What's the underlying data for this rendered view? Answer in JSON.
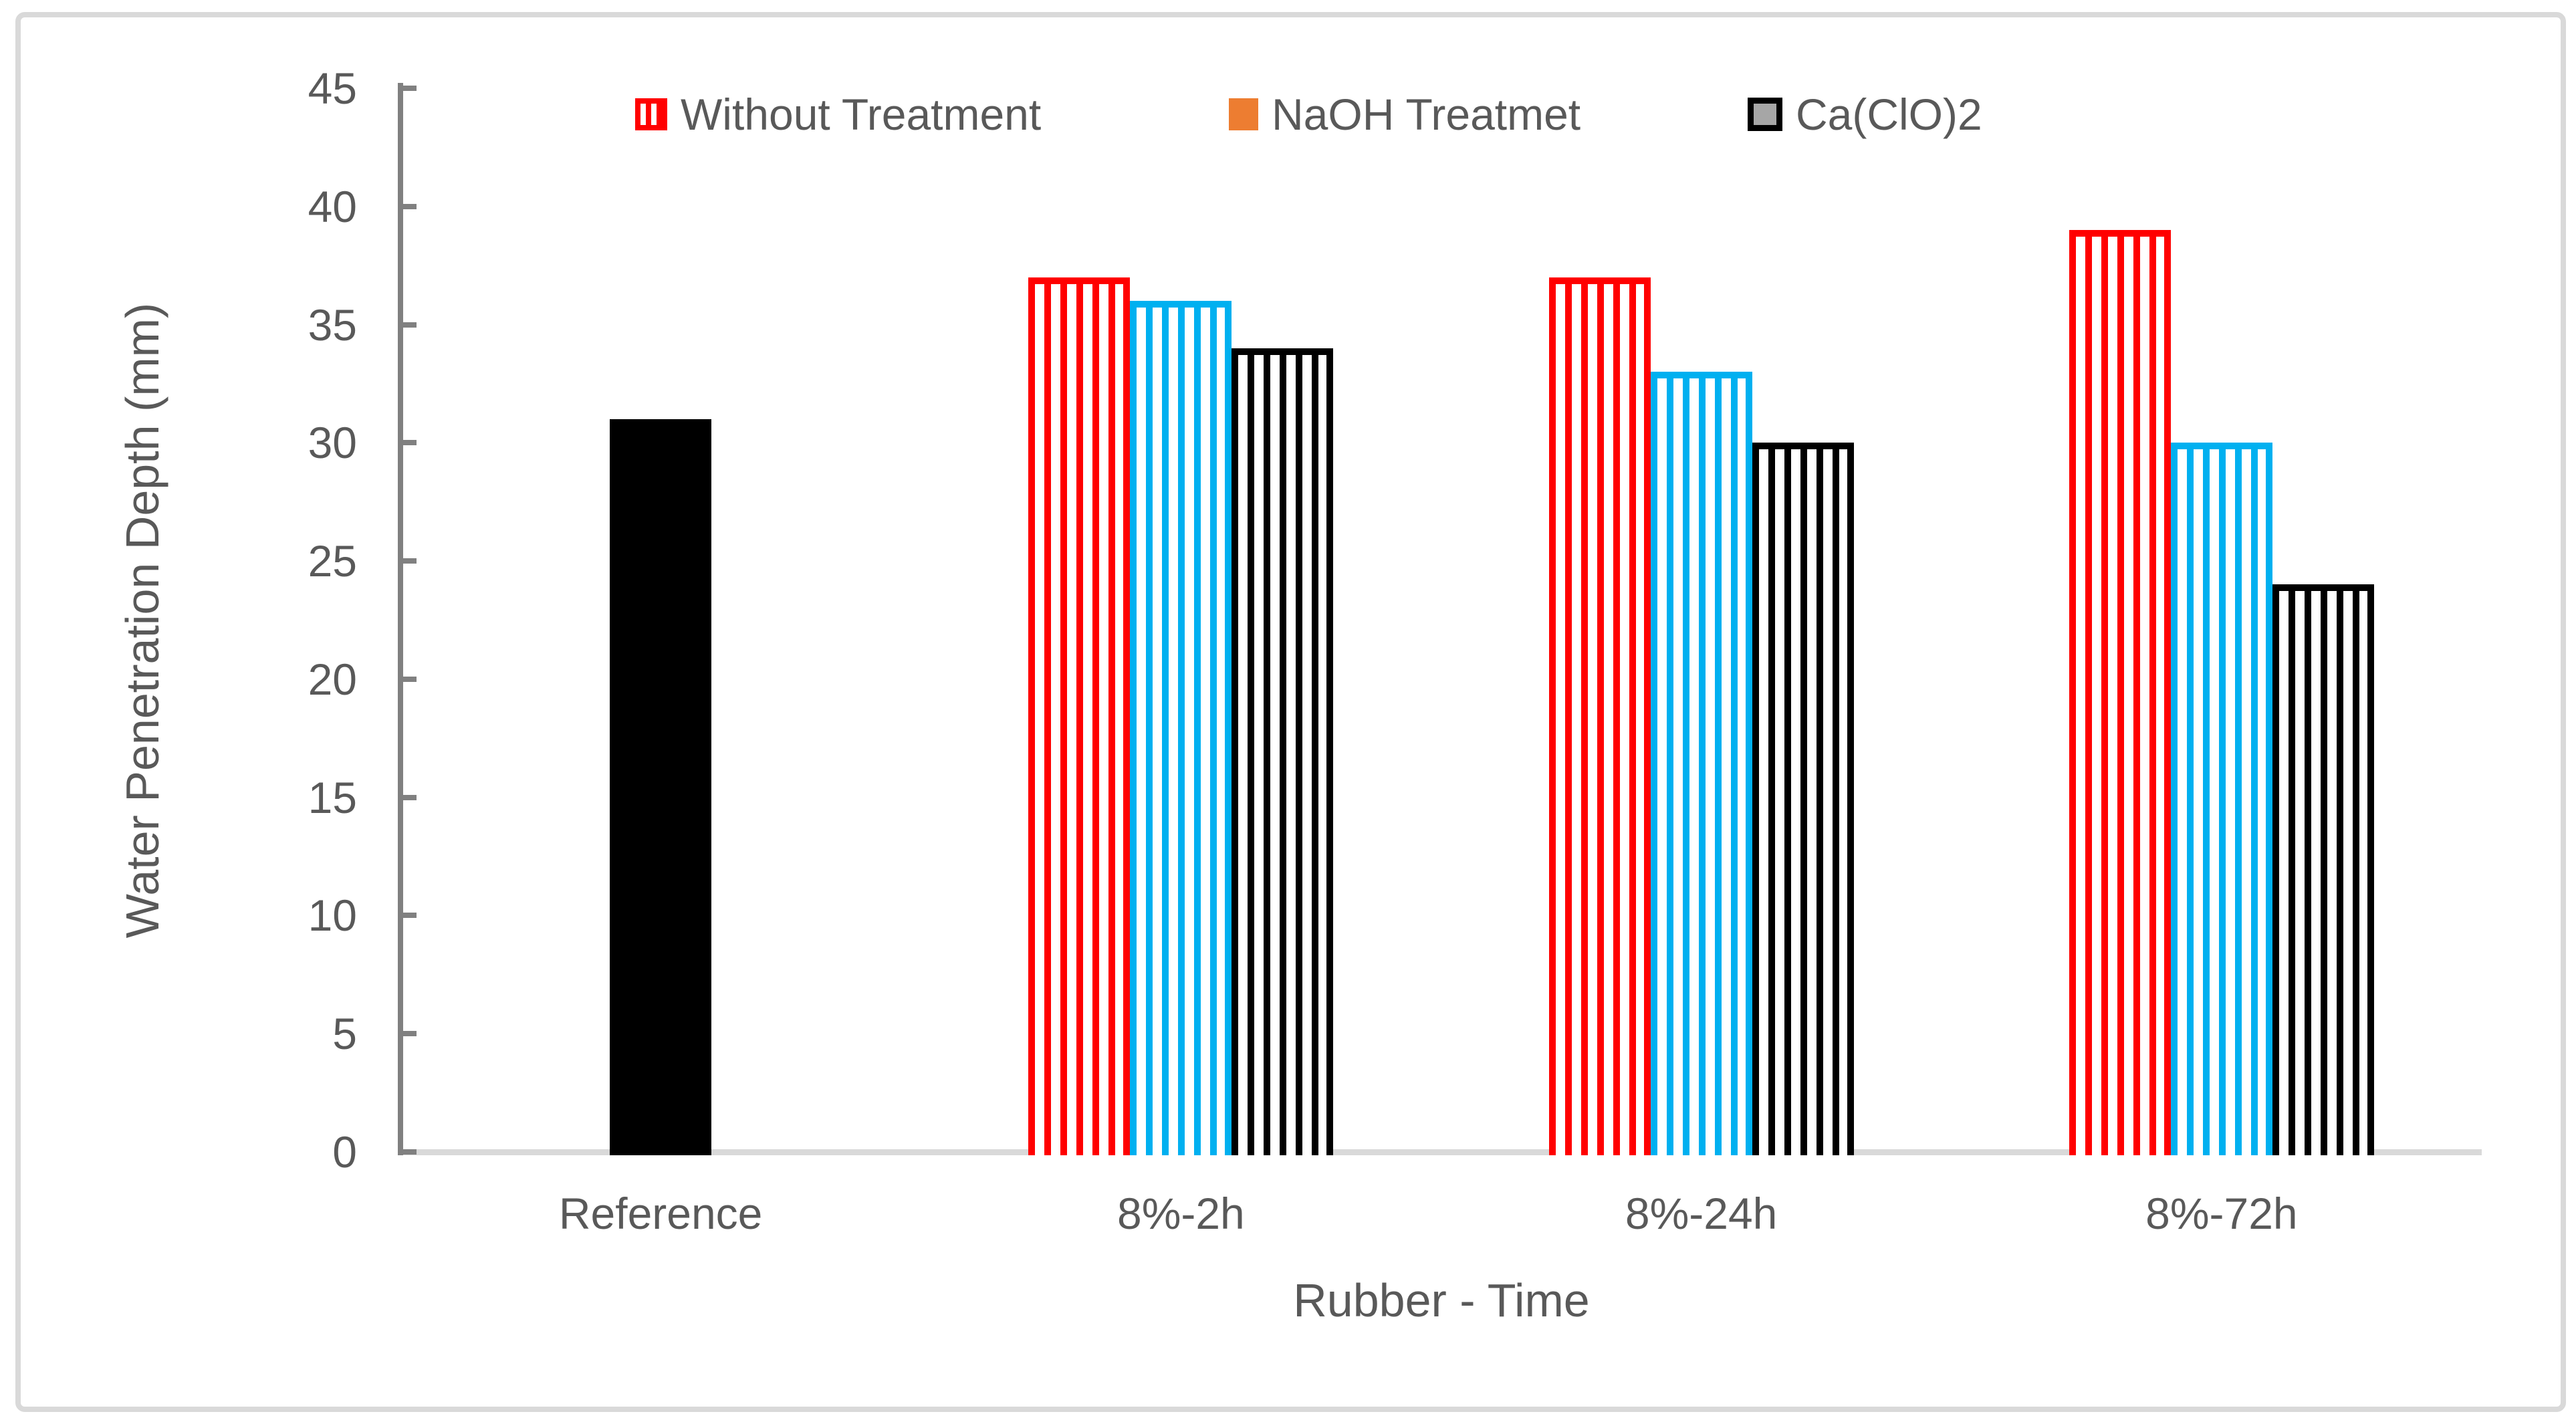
{
  "figure": {
    "background": "#FFFFFF",
    "border_color": "#D9D9D9"
  },
  "legend": {
    "position": "top",
    "entries": [
      {
        "label": "Without Treatment",
        "swatch": "red-striped",
        "swatch_color": "#FF0000"
      },
      {
        "label": "NaOH Treatmet",
        "swatch": "orange-solid",
        "swatch_color": "#ED7D31"
      },
      {
        "label": "Ca(ClO)2",
        "swatch": "gray-filled-black-border",
        "swatch_color": "#A6A6A6"
      }
    ]
  },
  "chart_data": {
    "type": "bar",
    "title": "",
    "xlabel": "Rubber - Time",
    "ylabel": "Water Penetration Depth (mm)",
    "categories": [
      "Reference",
      "8%-2h",
      "8%-24h",
      "8%-72h"
    ],
    "series": [
      {
        "name": "Without Treatment",
        "color": "#FF0000",
        "fill": "striped-vertical",
        "values": [
          null,
          37,
          37,
          39
        ]
      },
      {
        "name": "NaOH Treatmet",
        "color": "#00B0F0",
        "fill": "striped-vertical",
        "values": [
          null,
          36,
          33,
          30
        ]
      },
      {
        "name": "Ca(ClO)2",
        "color": "#000000",
        "fill": "striped-vertical",
        "values": [
          null,
          34,
          30,
          24
        ]
      }
    ],
    "reference_bar": {
      "category": "Reference",
      "value": 31,
      "color": "#000000",
      "fill": "solid"
    },
    "ylim": [
      0,
      45
    ],
    "yticks": [
      0,
      5,
      10,
      15,
      20,
      25,
      30,
      35,
      40,
      45
    ],
    "grid": false,
    "legend_position": "top-inside",
    "axis_color": "#808080",
    "baseline_color": "#D9D9D9",
    "text_color": "#595959"
  }
}
